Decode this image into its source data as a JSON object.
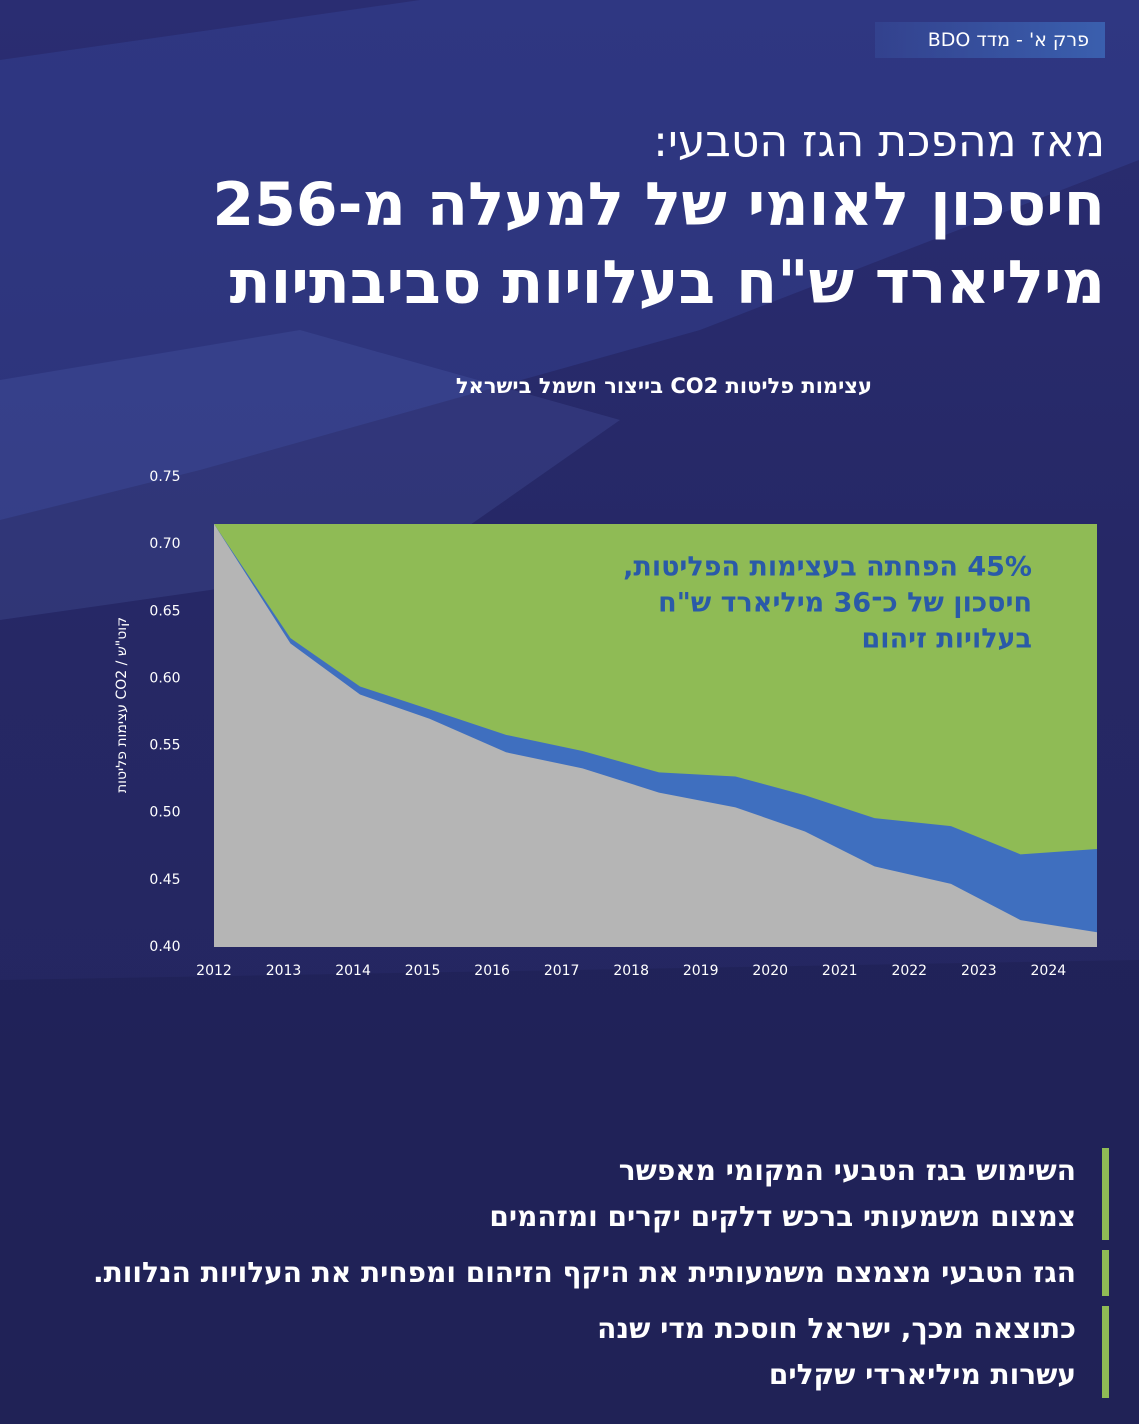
{
  "header": {
    "badge": "פרק א' - מדד BDO",
    "subtitle": "מאז מהפכת הגז הטבעי:",
    "title_lines": [
      "חיסכון לאומי של למעלה מ-256",
      "מיליארד ש\"ח בעלויות סביבתיות"
    ]
  },
  "chart_data": {
    "type": "area",
    "title": "עצימות פליטות CO2 בייצור חשמל בישראל",
    "ylabel": "עצימות פליטות CO2 / קוט\"ש",
    "annotation": [
      "45% הפחתה בעצימות הפליטות,",
      "חיסכון של כ־36 מיליארד ש\"ח",
      "בעלויות זיהום"
    ],
    "x": [
      2012,
      2013.1,
      2014.1,
      2015.1,
      2016.2,
      2017.3,
      2018.4,
      2019.5,
      2020.5,
      2021.5,
      2022.6,
      2023.6,
      2024.7
    ],
    "series": [
      {
        "color": "#8fbb55",
        "values": [
          0.715,
          0.715,
          0.715,
          0.715,
          0.715,
          0.715,
          0.715,
          0.715,
          0.715,
          0.715,
          0.715,
          0.715,
          0.715
        ]
      },
      {
        "color": "#3f6fbf",
        "values": [
          0.715,
          0.63,
          0.594,
          0.577,
          0.558,
          0.546,
          0.53,
          0.527,
          0.513,
          0.496,
          0.49,
          0.469,
          0.473
        ]
      },
      {
        "color": "#b5b5b5",
        "values": [
          0.715,
          0.626,
          0.588,
          0.57,
          0.545,
          0.533,
          0.515,
          0.504,
          0.486,
          0.46,
          0.447,
          0.42,
          0.411
        ]
      }
    ],
    "xlim": [
      2012,
      2024.7
    ],
    "ylim": [
      0.4,
      0.75
    ],
    "xticks": [
      2012,
      2013,
      2014,
      2015,
      2016,
      2017,
      2018,
      2019,
      2020,
      2021,
      2022,
      2023,
      2024
    ],
    "yticks": [
      {
        "value": 0.4,
        "label": "0.40"
      },
      0.45,
      {
        "value": 0.5,
        "label": "0.50"
      },
      0.55,
      {
        "value": 0.6,
        "label": "0.60"
      },
      0.65,
      {
        "value": 0.7,
        "label": "0.70"
      },
      0.75
    ]
  },
  "bullets": [
    [
      "השימוש בגז הטבעי המקומי מאפשר",
      "צמצום משמעותי ברכש דלקים יקרים ומזהמים"
    ],
    [
      "הגז הטבעי מצמצם משמעותית את היקף הזיהום ומפחית את העלויות הנלוות."
    ],
    [
      "כתוצאה מכך, ישראל חוסכת מדי שנה",
      "עשרות מיליארדי שקלים"
    ]
  ]
}
